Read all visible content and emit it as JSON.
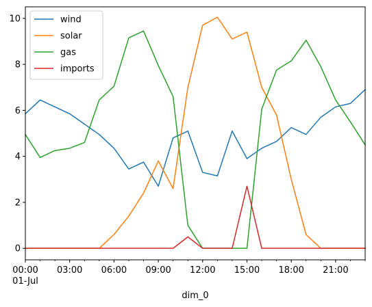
{
  "chart_data": {
    "type": "line",
    "title": "",
    "xlabel": "dim_0",
    "ylabel": "",
    "x": [
      "00:00",
      "01:00",
      "02:00",
      "03:00",
      "04:00",
      "05:00",
      "06:00",
      "07:00",
      "08:00",
      "09:00",
      "10:00",
      "11:00",
      "12:00",
      "13:00",
      "14:00",
      "15:00",
      "16:00",
      "17:00",
      "18:00",
      "19:00",
      "20:00",
      "21:00",
      "22:00",
      "23:00"
    ],
    "x_ticks": [
      {
        "index": 0,
        "label": "00:00",
        "sublabel": "01-Jul"
      },
      {
        "index": 3,
        "label": "03:00",
        "sublabel": ""
      },
      {
        "index": 6,
        "label": "06:00",
        "sublabel": ""
      },
      {
        "index": 9,
        "label": "09:00",
        "sublabel": ""
      },
      {
        "index": 12,
        "label": "12:00",
        "sublabel": ""
      },
      {
        "index": 15,
        "label": "15:00",
        "sublabel": ""
      },
      {
        "index": 18,
        "label": "18:00",
        "sublabel": ""
      },
      {
        "index": 21,
        "label": "21:00",
        "sublabel": ""
      }
    ],
    "y_ticks": [
      0,
      2,
      4,
      6,
      8,
      10
    ],
    "ylim": [
      -0.5,
      10.5
    ],
    "grid": false,
    "legend_position": "top-left",
    "series": [
      {
        "name": "wind",
        "color": "#1f77b4",
        "values": [
          5.85,
          6.45,
          6.15,
          5.85,
          5.4,
          4.95,
          4.35,
          3.45,
          3.75,
          2.7,
          4.8,
          5.1,
          3.3,
          3.15,
          5.1,
          3.9,
          4.35,
          4.65,
          5.25,
          4.95,
          5.7,
          6.15,
          6.3,
          6.9
        ]
      },
      {
        "name": "solar",
        "color": "#ff7f0e",
        "values": [
          0,
          0,
          0,
          0,
          0,
          0,
          0.6,
          1.4,
          2.4,
          3.8,
          2.6,
          7.0,
          9.7,
          10.05,
          9.1,
          9.4,
          7.0,
          5.8,
          3.0,
          0.6,
          0,
          0,
          0,
          0
        ]
      },
      {
        "name": "gas",
        "color": "#2ca02c",
        "values": [
          4.95,
          3.95,
          4.25,
          4.35,
          4.6,
          6.45,
          7.05,
          9.15,
          9.45,
          7.95,
          6.6,
          1.0,
          0,
          0,
          0,
          0,
          6.05,
          7.75,
          8.15,
          9.05,
          7.9,
          6.45,
          5.5,
          4.5
        ]
      },
      {
        "name": "imports",
        "color": "#d62728",
        "values": [
          0,
          0,
          0,
          0,
          0,
          0,
          0,
          0,
          0,
          0,
          0,
          0.5,
          0,
          0,
          0,
          2.7,
          0,
          0,
          0,
          0,
          0,
          0,
          0,
          0
        ]
      }
    ]
  }
}
